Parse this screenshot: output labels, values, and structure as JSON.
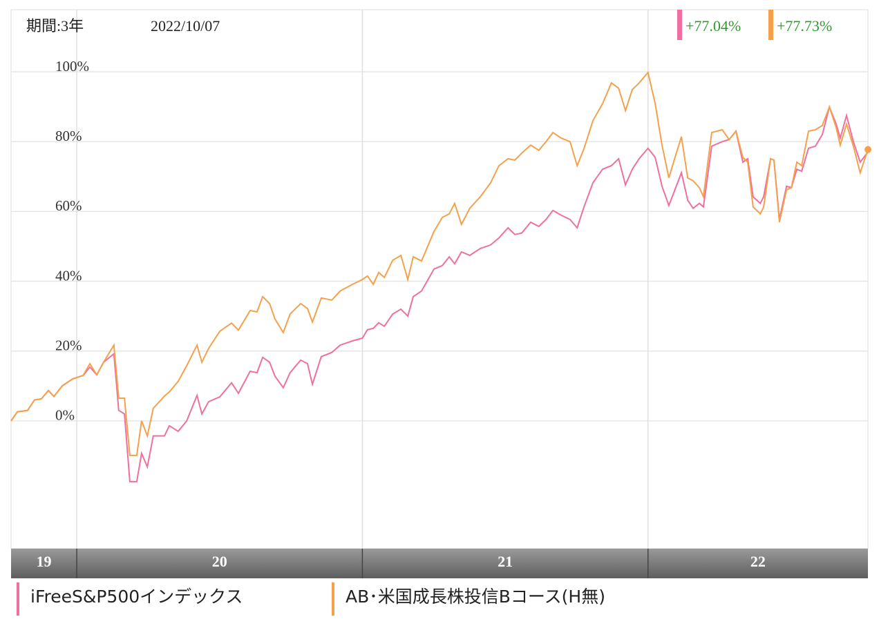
{
  "chart_data": {
    "type": "line",
    "period": "期間:3年",
    "date": "2022/10/07",
    "xlim": [
      2019.77,
      2022.77
    ],
    "xticks": [
      2020,
      2021,
      2022
    ],
    "year_labels": [
      "19",
      "20",
      "21",
      "22"
    ],
    "ylim": [
      -36.6,
      117.8
    ],
    "yticks": [
      {
        "value": 0,
        "label": "0%"
      },
      {
        "value": 20,
        "label": "20%"
      },
      {
        "value": 40,
        "label": "40%"
      },
      {
        "value": 60,
        "label": "60%"
      },
      {
        "value": 80,
        "label": "80%"
      },
      {
        "value": 100,
        "label": "100%"
      }
    ],
    "grid": true,
    "x": [
      2019.77,
      2019.792,
      2019.828,
      2019.852,
      2019.876,
      2019.901,
      2019.92,
      2019.949,
      2019.985,
      2020.022,
      2020.046,
      2020.07,
      2020.094,
      2020.13,
      2020.147,
      2020.167,
      2020.186,
      2020.21,
      2020.227,
      2020.247,
      2020.268,
      2020.307,
      2020.324,
      2020.355,
      2020.385,
      2020.421,
      2020.438,
      2020.462,
      2020.501,
      2020.542,
      2020.566,
      2020.607,
      2020.631,
      2020.651,
      2020.675,
      2020.694,
      2020.723,
      2020.747,
      2020.784,
      2020.808,
      2020.825,
      2020.856,
      2020.893,
      2020.922,
      2020.965,
      2021.0,
      2021.018,
      2021.038,
      2021.057,
      2021.077,
      2021.106,
      2021.135,
      2021.159,
      2021.178,
      2021.207,
      2021.251,
      2021.28,
      2021.304,
      2021.323,
      2021.347,
      2021.376,
      2021.413,
      2021.449,
      2021.478,
      2021.51,
      2021.534,
      2021.558,
      2021.589,
      2021.618,
      2021.643,
      2021.667,
      2021.696,
      2021.727,
      2021.752,
      2021.776,
      2021.807,
      2021.841,
      2021.872,
      2021.897,
      2021.921,
      2021.945,
      2021.969,
      2022.0,
      2022.025,
      2022.049,
      2022.073,
      2022.097,
      2022.117,
      2022.139,
      2022.158,
      2022.18,
      2022.194,
      2022.223,
      2022.26,
      2022.284,
      2022.308,
      2022.332,
      2022.349,
      2022.368,
      2022.393,
      2022.405,
      2022.429,
      2022.441,
      2022.46,
      2022.485,
      2022.502,
      2022.521,
      2022.538,
      2022.562,
      2022.586,
      2022.61,
      2022.635,
      2022.659,
      2022.673,
      2022.695,
      2022.719,
      2022.743,
      2022.77
    ],
    "series": [
      {
        "name": "iFreeS&P500インデックス",
        "color": "#ee6fa0",
        "end_label": "+77.04%",
        "values": [
          0,
          2.6,
          3,
          6,
          6.3,
          8.7,
          7,
          10,
          12,
          13,
          15.4,
          13.2,
          16.8,
          19.2,
          3,
          2,
          -17.4,
          -17.4,
          -9.3,
          -13.2,
          -4.3,
          -4.3,
          -1.4,
          -3,
          0,
          7.3,
          2,
          5.5,
          6.9,
          10.9,
          7.9,
          14.2,
          13.8,
          18.2,
          16.8,
          12.8,
          9.5,
          13.8,
          17.4,
          16.4,
          10.5,
          18.4,
          19.6,
          21.7,
          22.9,
          23.7,
          26.1,
          26.5,
          28.1,
          27.1,
          30.6,
          32,
          30,
          35.6,
          37.2,
          43.5,
          44.5,
          47,
          45,
          48.4,
          47.4,
          49.4,
          50.4,
          52.4,
          55.3,
          53.4,
          53.8,
          56.9,
          55.7,
          57.7,
          60.3,
          58.9,
          57.7,
          55.3,
          61.3,
          68.2,
          72.1,
          73.1,
          75.1,
          67.6,
          72.1,
          75.1,
          78.1,
          75.5,
          67.2,
          61.7,
          66.8,
          71.1,
          63.2,
          60.9,
          62.3,
          61.3,
          78.7,
          80,
          80.6,
          83,
          74.1,
          75.1,
          64.2,
          62.3,
          64.2,
          75.1,
          74.7,
          57.7,
          67.2,
          66.8,
          72.1,
          71.5,
          78.1,
          78.7,
          82,
          89.9,
          85,
          81,
          87.5,
          80,
          74.1,
          77.04
        ]
      },
      {
        "name": "AB･米国成長株投信Bコース(H無)",
        "color": "#f5a04a",
        "end_label": "+77.73%",
        "values": [
          0,
          2.6,
          3,
          6,
          6.3,
          8.7,
          7,
          10,
          12,
          13,
          16.4,
          13.2,
          16.8,
          21.7,
          6.5,
          6.5,
          -9.9,
          -9.9,
          0,
          -4.3,
          3.6,
          7.1,
          8.3,
          11.3,
          15.8,
          21.7,
          16.8,
          20.8,
          25.7,
          28,
          26,
          31.6,
          31.2,
          35.6,
          33.6,
          29.2,
          25.3,
          30.6,
          33.6,
          32.2,
          28.3,
          35.2,
          34.6,
          37.2,
          39.1,
          40.5,
          41.5,
          39.1,
          42.5,
          41.1,
          46,
          47.4,
          40.5,
          47,
          45.8,
          54.3,
          58.3,
          59.3,
          62.3,
          56.3,
          60.9,
          64.2,
          68.2,
          73.1,
          75.1,
          74.7,
          76.7,
          79,
          77.5,
          80,
          82.6,
          81,
          80,
          73.1,
          78,
          86,
          90.9,
          96.8,
          95.3,
          88.9,
          94.9,
          96.8,
          99.8,
          90.9,
          79,
          69.6,
          76.1,
          81.4,
          69.6,
          68.8,
          66.8,
          64.2,
          82.6,
          83.4,
          80.6,
          83,
          75.5,
          74.1,
          61.3,
          59.3,
          61.3,
          75.1,
          74.7,
          56.9,
          66.2,
          66.8,
          74.1,
          73.1,
          83,
          83.4,
          84.6,
          89.9,
          84,
          79,
          85,
          78.7,
          71.1,
          77.73
        ]
      }
    ]
  }
}
